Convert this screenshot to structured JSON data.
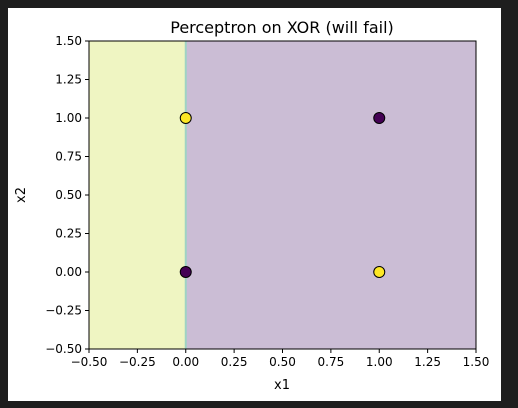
{
  "chart_data": {
    "type": "scatter",
    "title": "Perceptron on XOR (will fail)",
    "xlabel": "x1",
    "ylabel": "x2",
    "xlim": [
      -0.5,
      1.5
    ],
    "ylim": [
      -0.5,
      1.5
    ],
    "xticks": [
      "−0.50",
      "−0.25",
      "0.00",
      "0.25",
      "0.50",
      "0.75",
      "1.00",
      "1.25",
      "1.50"
    ],
    "yticks": [
      "−0.50",
      "−0.25",
      "0.00",
      "0.25",
      "0.50",
      "0.75",
      "1.00",
      "1.25",
      "1.50"
    ],
    "xtick_values": [
      -0.5,
      -0.25,
      0,
      0.25,
      0.5,
      0.75,
      1.0,
      1.25,
      1.5
    ],
    "ytick_values": [
      -0.5,
      -0.25,
      0,
      0.25,
      0.5,
      0.75,
      1.0,
      1.25,
      1.5
    ],
    "grid": false,
    "decision_boundary_x1": 0.0,
    "regions": [
      {
        "class": 1,
        "x_range": [
          -0.5,
          0.0
        ],
        "color": "#eff5c2"
      },
      {
        "class": 0,
        "x_range": [
          0.0,
          1.5
        ],
        "color": "#cbbdd5"
      }
    ],
    "points": [
      {
        "x": 0,
        "y": 0,
        "class": 0,
        "color": "#440154"
      },
      {
        "x": 0,
        "y": 1,
        "class": 1,
        "color": "#fde725"
      },
      {
        "x": 1,
        "y": 0,
        "class": 1,
        "color": "#fde725"
      },
      {
        "x": 1,
        "y": 1,
        "class": 0,
        "color": "#440154"
      }
    ],
    "boundary_color": "#9fd3c4"
  }
}
